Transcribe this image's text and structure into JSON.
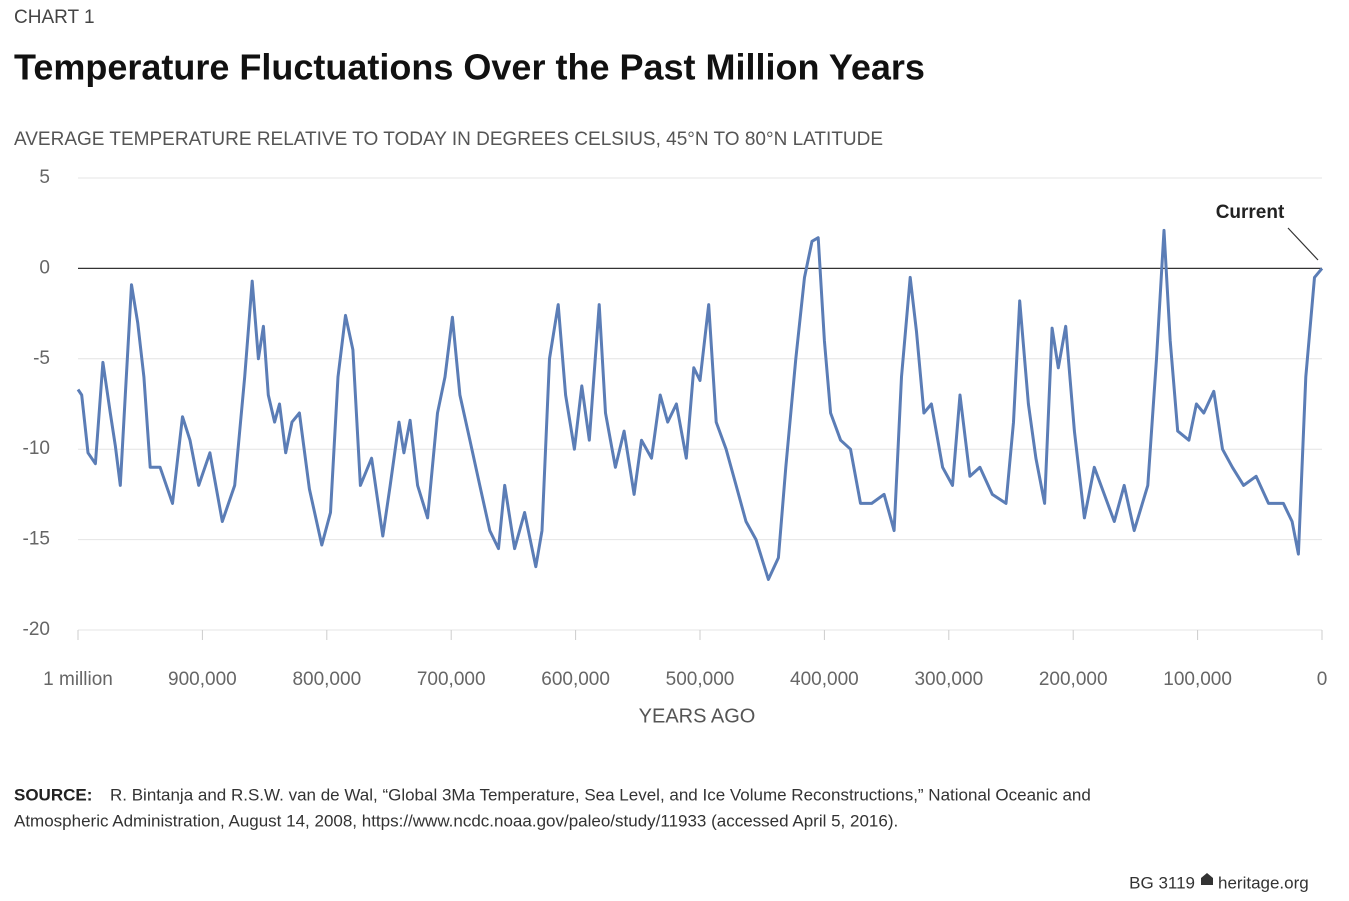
{
  "chart_data": {
    "type": "line",
    "kicker": "CHART 1",
    "title": "Temperature Fluctuations Over the Past Million Years",
    "subtitle": "AVERAGE TEMPERATURE RELATIVE TO TODAY IN DEGREES CELSIUS, 45°N TO 80°N LATITUDE",
    "x_label": "YEARS AGO",
    "annotation": "Current",
    "source_label": "SOURCE:",
    "source_line1": "R. Bintanja and R.S.W. van de Wal, “Global 3Ma Temperature, Sea Level, and Ice Volume Reconstructions,” National Oceanic and",
    "source_line2": "Atmospheric Administration, August 14, 2008, https://www.ncdc.noaa.gov/paleo/study/11933 (accessed April 5, 2016).",
    "footer_id": "BG 3119",
    "footer_site": "heritage.org",
    "xlim": [
      1000000,
      0
    ],
    "ylim": [
      -20,
      5
    ],
    "xticks": [
      {
        "value": 1000000,
        "label": "1 million"
      },
      {
        "value": 900000,
        "label": "900,000"
      },
      {
        "value": 800000,
        "label": "800,000"
      },
      {
        "value": 700000,
        "label": "700,000"
      },
      {
        "value": 600000,
        "label": "600,000"
      },
      {
        "value": 500000,
        "label": "500,000"
      },
      {
        "value": 400000,
        "label": "400,000"
      },
      {
        "value": 300000,
        "label": "300,000"
      },
      {
        "value": 200000,
        "label": "200,000"
      },
      {
        "value": 100000,
        "label": "100,000"
      },
      0
    ],
    "yticks": [
      5,
      0,
      -5,
      -10,
      -15,
      -20
    ],
    "grid": true,
    "color": "#5b7db6",
    "x": [
      1000000,
      997000,
      992000,
      986000,
      980000,
      974000,
      970000,
      966000,
      962000,
      957000,
      952000,
      947000,
      942000,
      934000,
      924000,
      916000,
      910000,
      903000,
      894000,
      884000,
      874000,
      866000,
      860000,
      855000,
      851000,
      847000,
      842000,
      838000,
      833000,
      828000,
      822000,
      814000,
      804000,
      797000,
      791000,
      785000,
      779000,
      773000,
      764000,
      755000,
      749000,
      742000,
      738000,
      733000,
      727000,
      719000,
      711000,
      705000,
      699000,
      693000,
      685000,
      677000,
      669000,
      662000,
      657000,
      649000,
      641000,
      632000,
      627000,
      621000,
      614000,
      608000,
      601000,
      595000,
      589000,
      581000,
      576000,
      568000,
      561000,
      553000,
      547000,
      539000,
      532000,
      526000,
      519000,
      511000,
      505000,
      500000,
      493000,
      487000,
      479000,
      471000,
      463000,
      455000,
      445000,
      437000,
      431000,
      423000,
      416000,
      410000,
      405000,
      400000,
      395000,
      387000,
      379000,
      371000,
      362000,
      352000,
      344000,
      338000,
      331000,
      326000,
      320000,
      314000,
      305000,
      297000,
      291000,
      283000,
      275000,
      265000,
      254000,
      248000,
      243000,
      236000,
      230000,
      223000,
      217000,
      212000,
      206000,
      199000,
      191000,
      183000,
      175000,
      167000,
      159000,
      151000,
      140000,
      133000,
      127000,
      122000,
      116000,
      107000,
      101000,
      95000,
      87000,
      80000,
      72000,
      63000,
      53000,
      43000,
      31000,
      24000,
      19000,
      13000,
      6000,
      0
    ],
    "values": [
      -6.7,
      -7,
      -10.2,
      -10.8,
      -5.2,
      -8,
      -9.8,
      -12,
      -7,
      -0.9,
      -3,
      -6,
      -11,
      -11,
      -13,
      -8.2,
      -9.5,
      -12,
      -10.2,
      -14,
      -12,
      -6,
      -0.7,
      -5,
      -3.2,
      -7,
      -8.5,
      -7.5,
      -10.2,
      -8.5,
      -8,
      -12.2,
      -15.3,
      -13.5,
      -6,
      -2.6,
      -4.5,
      -12,
      -10.5,
      -14.8,
      -12,
      -8.5,
      -10.2,
      -8.4,
      -12,
      -13.8,
      -8,
      -6,
      -2.7,
      -7,
      -9.5,
      -12,
      -14.5,
      -15.5,
      -12,
      -15.5,
      -13.5,
      -16.5,
      -14.5,
      -5,
      -2,
      -7,
      -10,
      -6.5,
      -9.5,
      -2,
      -8,
      -11,
      -9,
      -12.5,
      -9.5,
      -10.5,
      -7,
      -8.5,
      -7.5,
      -10.5,
      -5.5,
      -6.2,
      -2,
      -8.5,
      -10,
      -12,
      -14,
      -15,
      -17.2,
      -16,
      -11,
      -5,
      -0.5,
      1.5,
      1.7,
      -4,
      -8,
      -9.5,
      -10,
      -13,
      -13,
      -12.5,
      -14.5,
      -6,
      -0.5,
      -3.5,
      -8,
      -7.5,
      -11,
      -12,
      -7,
      -11.5,
      -11,
      -12.5,
      -13,
      -8.5,
      -1.8,
      -7.5,
      -10.5,
      -13,
      -3.3,
      -5.5,
      -3.2,
      -9,
      -13.8,
      -11,
      -12.5,
      -14,
      -12,
      -14.5,
      -12,
      -5,
      2.1,
      -4,
      -9,
      -9.5,
      -7.5,
      -8,
      -6.8,
      -10,
      -11,
      -12,
      -11.5,
      -13,
      -13,
      -14,
      -15.8,
      -6,
      -0.5,
      0
    ]
  }
}
